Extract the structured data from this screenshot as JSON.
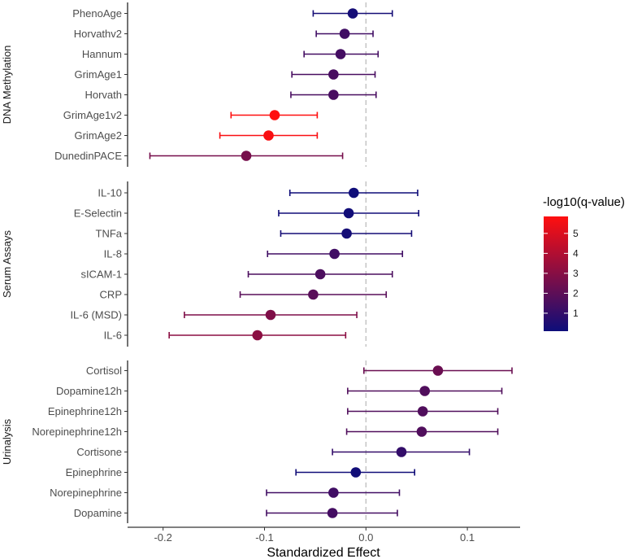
{
  "chart_data": {
    "type": "forest",
    "xlabel": "Standardized Effect",
    "xlim": [
      -0.235,
      0.152
    ],
    "xticks": [
      -0.2,
      -0.1,
      0.0,
      0.1
    ],
    "xtick_labels": [
      "-0.2",
      "-0.1",
      "0.0",
      "0.1"
    ],
    "reference_line": 0,
    "legend": {
      "title": "-log10(q-value)",
      "min": 0.1,
      "max": 5.85,
      "ticks": [
        1,
        2,
        3,
        4,
        5
      ],
      "tick_labels": [
        "1",
        "2",
        "3",
        "4",
        "5"
      ],
      "low_color": "#0d0d7a",
      "high_color": "#ff0f0f",
      "placement": "right"
    },
    "facets": [
      {
        "label": "DNA Methylation",
        "rows": [
          {
            "name": "PhenoAge",
            "estimate": -0.013,
            "lower": -0.052,
            "upper": 0.026,
            "q": 0.3
          },
          {
            "name": "Horvathv2",
            "estimate": -0.021,
            "lower": -0.049,
            "upper": 0.007,
            "q": 1.3
          },
          {
            "name": "Hannum",
            "estimate": -0.025,
            "lower": -0.061,
            "upper": 0.012,
            "q": 1.4
          },
          {
            "name": "GrimAge1",
            "estimate": -0.032,
            "lower": -0.073,
            "upper": 0.009,
            "q": 1.5
          },
          {
            "name": "Horvath",
            "estimate": -0.032,
            "lower": -0.074,
            "upper": 0.01,
            "q": 1.5
          },
          {
            "name": "GrimAge1v2",
            "estimate": -0.09,
            "lower": -0.133,
            "upper": -0.048,
            "q": 5.85
          },
          {
            "name": "GrimAge2",
            "estimate": -0.096,
            "lower": -0.144,
            "upper": -0.048,
            "q": 5.7
          },
          {
            "name": "DunedinPACE",
            "estimate": -0.118,
            "lower": -0.213,
            "upper": -0.023,
            "q": 2.6
          }
        ]
      },
      {
        "label": "Serum Assays",
        "rows": [
          {
            "name": "IL-10",
            "estimate": -0.012,
            "lower": -0.075,
            "upper": 0.051,
            "q": 0.15
          },
          {
            "name": "E-Selectin",
            "estimate": -0.017,
            "lower": -0.086,
            "upper": 0.052,
            "q": 0.2
          },
          {
            "name": "TNFa",
            "estimate": -0.019,
            "lower": -0.084,
            "upper": 0.045,
            "q": 0.3
          },
          {
            "name": "IL-8",
            "estimate": -0.031,
            "lower": -0.097,
            "upper": 0.036,
            "q": 1.3
          },
          {
            "name": "sICAM-1",
            "estimate": -0.045,
            "lower": -0.116,
            "upper": 0.026,
            "q": 1.6
          },
          {
            "name": "CRP",
            "estimate": -0.052,
            "lower": -0.124,
            "upper": 0.02,
            "q": 1.9
          },
          {
            "name": "IL-6 (MSD)",
            "estimate": -0.094,
            "lower": -0.179,
            "upper": -0.009,
            "q": 2.8
          },
          {
            "name": "IL-6",
            "estimate": -0.107,
            "lower": -0.194,
            "upper": -0.02,
            "q": 3.1
          }
        ]
      },
      {
        "label": "Urinalysis",
        "rows": [
          {
            "name": "Cortisol",
            "estimate": 0.071,
            "lower": -0.002,
            "upper": 0.144,
            "q": 2.3
          },
          {
            "name": "Dopamine12h",
            "estimate": 0.058,
            "lower": -0.018,
            "upper": 0.134,
            "q": 1.7
          },
          {
            "name": "Epinephrine12h",
            "estimate": 0.056,
            "lower": -0.018,
            "upper": 0.13,
            "q": 1.7
          },
          {
            "name": "Norepinephrine12h",
            "estimate": 0.055,
            "lower": -0.019,
            "upper": 0.13,
            "q": 1.7
          },
          {
            "name": "Cortisone",
            "estimate": 0.035,
            "lower": -0.033,
            "upper": 0.102,
            "q": 1.0
          },
          {
            "name": "Epinephrine",
            "estimate": -0.01,
            "lower": -0.069,
            "upper": 0.048,
            "q": 0.2
          },
          {
            "name": "Norepinephrine",
            "estimate": -0.032,
            "lower": -0.098,
            "upper": 0.033,
            "q": 1.3
          },
          {
            "name": "Dopamine",
            "estimate": -0.033,
            "lower": -0.098,
            "upper": 0.031,
            "q": 1.4
          }
        ]
      }
    ]
  }
}
